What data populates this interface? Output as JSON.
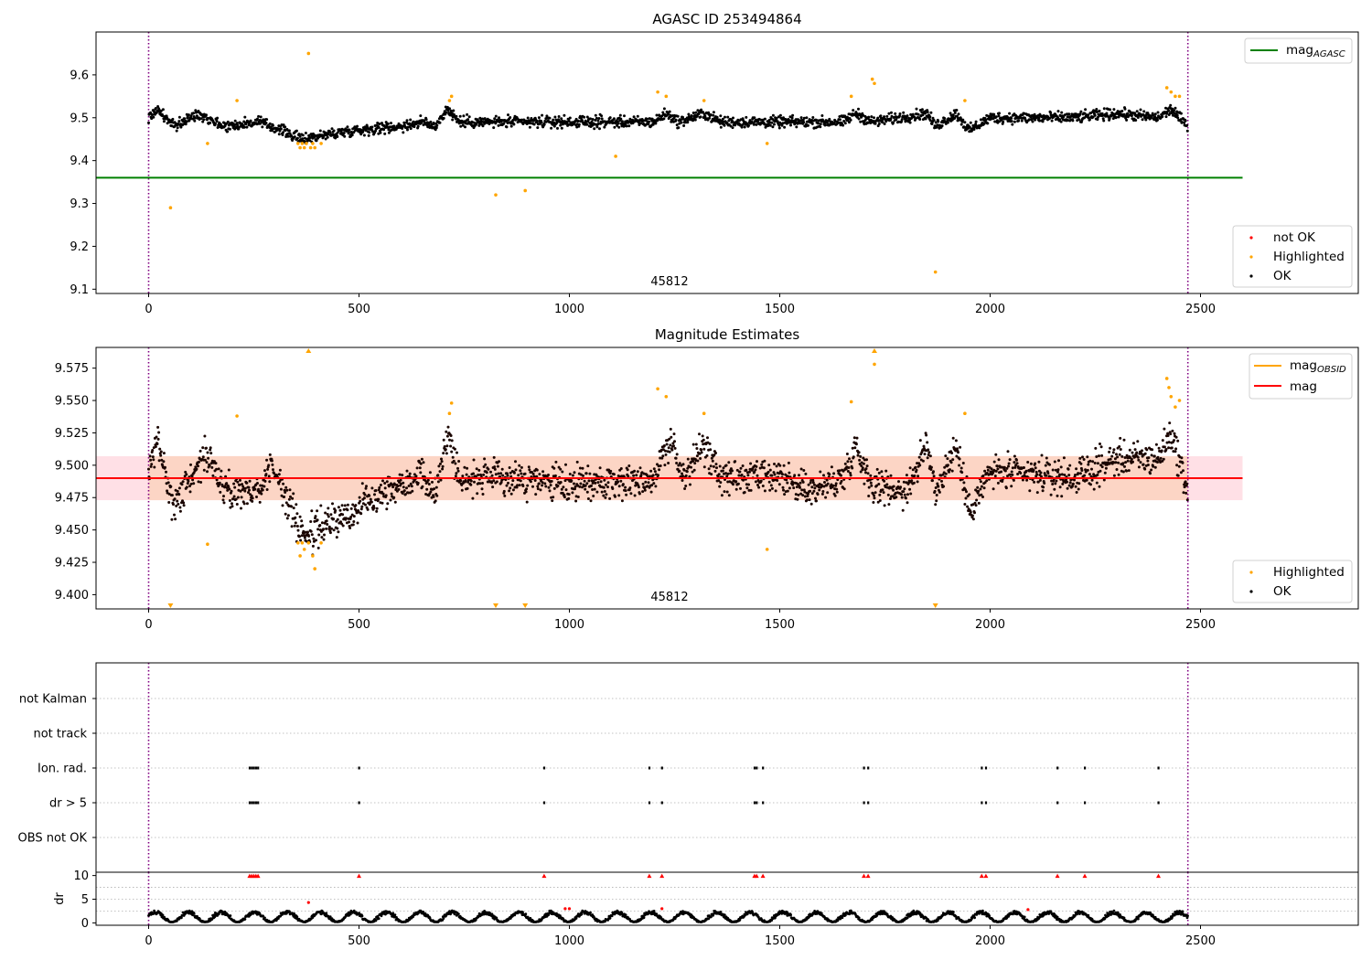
{
  "chart_data": [
    {
      "type": "scatter",
      "title": "AGASC ID 253494864",
      "xlim": [
        -125,
        2875
      ],
      "ylim": [
        9.09,
        9.7
      ],
      "xticks": [
        0,
        500,
        1000,
        1500,
        2000,
        2500
      ],
      "yticks": [
        9.1,
        9.2,
        9.3,
        9.4,
        9.5,
        9.6
      ],
      "vlines": [
        0,
        2470
      ],
      "vline_color": "#800080",
      "hline": {
        "name": "mag_AGASC",
        "value": 9.36,
        "x_range": [
          -125,
          2600
        ],
        "color": "#008000"
      },
      "annotation": {
        "text": "45812",
        "x": 1240
      },
      "legend_top": [
        {
          "label": "mag",
          "sub": "AGASC",
          "color": "#008000"
        }
      ],
      "legend_bottom": [
        {
          "label": "not OK",
          "color": "#ff0000"
        },
        {
          "label": "Highlighted",
          "color": "#ffa500"
        },
        {
          "label": "OK",
          "color": "#000000"
        }
      ],
      "ok_trend": [
        [
          0,
          9.5
        ],
        [
          20,
          9.52
        ],
        [
          60,
          9.48
        ],
        [
          120,
          9.51
        ],
        [
          180,
          9.48
        ],
        [
          260,
          9.49
        ],
        [
          320,
          9.47
        ],
        [
          360,
          9.45
        ],
        [
          420,
          9.46
        ],
        [
          480,
          9.47
        ],
        [
          600,
          9.48
        ],
        [
          650,
          9.49
        ],
        [
          680,
          9.48
        ],
        [
          710,
          9.52
        ],
        [
          740,
          9.49
        ],
        [
          850,
          9.49
        ],
        [
          1000,
          9.49
        ],
        [
          1200,
          9.49
        ],
        [
          1230,
          9.51
        ],
        [
          1260,
          9.49
        ],
        [
          1320,
          9.51
        ],
        [
          1360,
          9.49
        ],
        [
          1500,
          9.49
        ],
        [
          1650,
          9.49
        ],
        [
          1680,
          9.51
        ],
        [
          1720,
          9.49
        ],
        [
          1850,
          9.51
        ],
        [
          1870,
          9.48
        ],
        [
          1920,
          9.51
        ],
        [
          1950,
          9.47
        ],
        [
          2000,
          9.5
        ],
        [
          2200,
          9.5
        ],
        [
          2300,
          9.51
        ],
        [
          2400,
          9.5
        ],
        [
          2430,
          9.52
        ],
        [
          2470,
          9.48
        ]
      ],
      "highlighted": [
        [
          52,
          9.29
        ],
        [
          140,
          9.44
        ],
        [
          210,
          9.54
        ],
        [
          355,
          9.44
        ],
        [
          360,
          9.43
        ],
        [
          365,
          9.44
        ],
        [
          370,
          9.43
        ],
        [
          375,
          9.44
        ],
        [
          380,
          9.65
        ],
        [
          385,
          9.43
        ],
        [
          390,
          9.44
        ],
        [
          395,
          9.43
        ],
        [
          410,
          9.44
        ],
        [
          715,
          9.54
        ],
        [
          720,
          9.55
        ],
        [
          825,
          9.32
        ],
        [
          895,
          9.33
        ],
        [
          1110,
          9.41
        ],
        [
          1210,
          9.56
        ],
        [
          1230,
          9.55
        ],
        [
          1320,
          9.54
        ],
        [
          1470,
          9.44
        ],
        [
          1670,
          9.55
        ],
        [
          1720,
          9.59
        ],
        [
          1725,
          9.58
        ],
        [
          1870,
          9.14
        ],
        [
          1940,
          9.54
        ],
        [
          2420,
          9.57
        ],
        [
          2430,
          9.56
        ],
        [
          2440,
          9.55
        ],
        [
          2450,
          9.55
        ]
      ]
    },
    {
      "type": "scatter",
      "title": "Magnitude Estimates",
      "xlim": [
        -125,
        2875
      ],
      "ylim": [
        9.389,
        9.591
      ],
      "xticks": [
        0,
        500,
        1000,
        1500,
        2000,
        2500
      ],
      "yticks": [
        9.4,
        9.425,
        9.45,
        9.475,
        9.5,
        9.525,
        9.55,
        9.575
      ],
      "ytick_labels": [
        "9.400",
        "9.425",
        "9.450",
        "9.475",
        "9.500",
        "9.525",
        "9.550",
        "9.575"
      ],
      "vlines": [
        0,
        2470
      ],
      "hline": {
        "name": "mag",
        "value": 9.49,
        "x_range": [
          -125,
          2600
        ],
        "color": "#ff0000"
      },
      "band_outer": {
        "y": [
          9.473,
          9.507
        ],
        "color": "#ffe0e6"
      },
      "band_inner": {
        "y": [
          9.473,
          9.507
        ],
        "x_range": [
          0,
          2470
        ],
        "color": "#fcd5c5"
      },
      "annotation": {
        "text": "45812",
        "x": 1240
      },
      "legend_top": [
        {
          "label": "mag",
          "sub": "OBSID",
          "color": "#ffa500"
        },
        {
          "label": "mag",
          "sub": "",
          "color": "#ff0000"
        }
      ],
      "legend_bottom": [
        {
          "label": "Highlighted",
          "color": "#ffa500"
        },
        {
          "label": "OK",
          "color": "#000000"
        }
      ],
      "ok_trend": [
        [
          0,
          9.49
        ],
        [
          20,
          9.52
        ],
        [
          60,
          9.47
        ],
        [
          120,
          9.5
        ],
        [
          140,
          9.51
        ],
        [
          180,
          9.48
        ],
        [
          260,
          9.48
        ],
        [
          290,
          9.5
        ],
        [
          320,
          9.48
        ],
        [
          360,
          9.45
        ],
        [
          380,
          9.445
        ],
        [
          420,
          9.455
        ],
        [
          480,
          9.46
        ],
        [
          520,
          9.475
        ],
        [
          600,
          9.485
        ],
        [
          650,
          9.495
        ],
        [
          680,
          9.475
        ],
        [
          710,
          9.525
        ],
        [
          740,
          9.49
        ],
        [
          850,
          9.49
        ],
        [
          1000,
          9.485
        ],
        [
          1200,
          9.49
        ],
        [
          1240,
          9.52
        ],
        [
          1270,
          9.49
        ],
        [
          1320,
          9.515
        ],
        [
          1360,
          9.49
        ],
        [
          1500,
          9.49
        ],
        [
          1570,
          9.48
        ],
        [
          1650,
          9.49
        ],
        [
          1680,
          9.515
        ],
        [
          1720,
          9.485
        ],
        [
          1800,
          9.48
        ],
        [
          1850,
          9.515
        ],
        [
          1870,
          9.48
        ],
        [
          1920,
          9.515
        ],
        [
          1950,
          9.465
        ],
        [
          2000,
          9.495
        ],
        [
          2200,
          9.49
        ],
        [
          2300,
          9.505
        ],
        [
          2400,
          9.505
        ],
        [
          2430,
          9.525
        ],
        [
          2470,
          9.48
        ]
      ],
      "highlighted": [
        [
          140,
          9.439
        ],
        [
          210,
          9.538
        ],
        [
          355,
          9.44
        ],
        [
          360,
          9.43
        ],
        [
          365,
          9.44
        ],
        [
          370,
          9.435
        ],
        [
          380,
          9.44
        ],
        [
          390,
          9.43
        ],
        [
          395,
          9.42
        ],
        [
          410,
          9.44
        ],
        [
          715,
          9.54
        ],
        [
          720,
          9.548
        ],
        [
          1210,
          9.559
        ],
        [
          1230,
          9.553
        ],
        [
          1320,
          9.54
        ],
        [
          1470,
          9.435
        ],
        [
          1670,
          9.549
        ],
        [
          1725,
          9.578
        ],
        [
          1940,
          9.54
        ],
        [
          2420,
          9.567
        ],
        [
          2425,
          9.56
        ],
        [
          2430,
          9.553
        ],
        [
          2440,
          9.545
        ],
        [
          2450,
          9.55
        ]
      ],
      "clipped_high": [
        380,
        1725
      ],
      "clipped_low": [
        52,
        825,
        895,
        1870
      ]
    },
    {
      "type": "scatter",
      "title": "",
      "xlim": [
        -125,
        2875
      ],
      "xticks": [
        0,
        500,
        1000,
        1500,
        2000,
        2500
      ],
      "vlines": [
        0,
        2470
      ],
      "categories": [
        "not Kalman",
        "not track",
        "Ion. rad.",
        "dr > 5",
        "OBS not OK"
      ],
      "flags": {
        "Ion. rad.": [
          240,
          245,
          250,
          255,
          260,
          500,
          940,
          1190,
          1220,
          1440,
          1445,
          1460,
          1700,
          1710,
          1980,
          1990,
          2160,
          2225,
          2400
        ],
        "dr > 5": [
          240,
          245,
          250,
          255,
          260,
          500,
          940,
          1190,
          1220,
          1440,
          1445,
          1460,
          1700,
          1710,
          1980,
          1990,
          2160,
          2225,
          2400
        ]
      }
    },
    {
      "type": "scatter",
      "ylabel": "dr",
      "xlim": [
        -125,
        2875
      ],
      "ylim": [
        -0.5,
        10.7
      ],
      "xticks": [
        0,
        500,
        1000,
        1500,
        2000,
        2500
      ],
      "yticks": [
        0,
        5,
        10
      ],
      "hgrid": [
        2.5,
        5,
        7.5
      ],
      "vlines": [
        0,
        2470
      ],
      "red_triangles": [
        240,
        245,
        250,
        255,
        260,
        500,
        940,
        1190,
        1220,
        1440,
        1445,
        1460,
        1700,
        1710,
        1980,
        1990,
        2160,
        2225,
        2400
      ],
      "red_points": [
        [
          380,
          4.3
        ],
        [
          990,
          3.0
        ],
        [
          1000,
          3.0
        ],
        [
          1220,
          3.0
        ],
        [
          2090,
          2.8
        ]
      ],
      "dr_range": [
        0.2,
        2.6
      ],
      "n_points": 2470
    }
  ]
}
